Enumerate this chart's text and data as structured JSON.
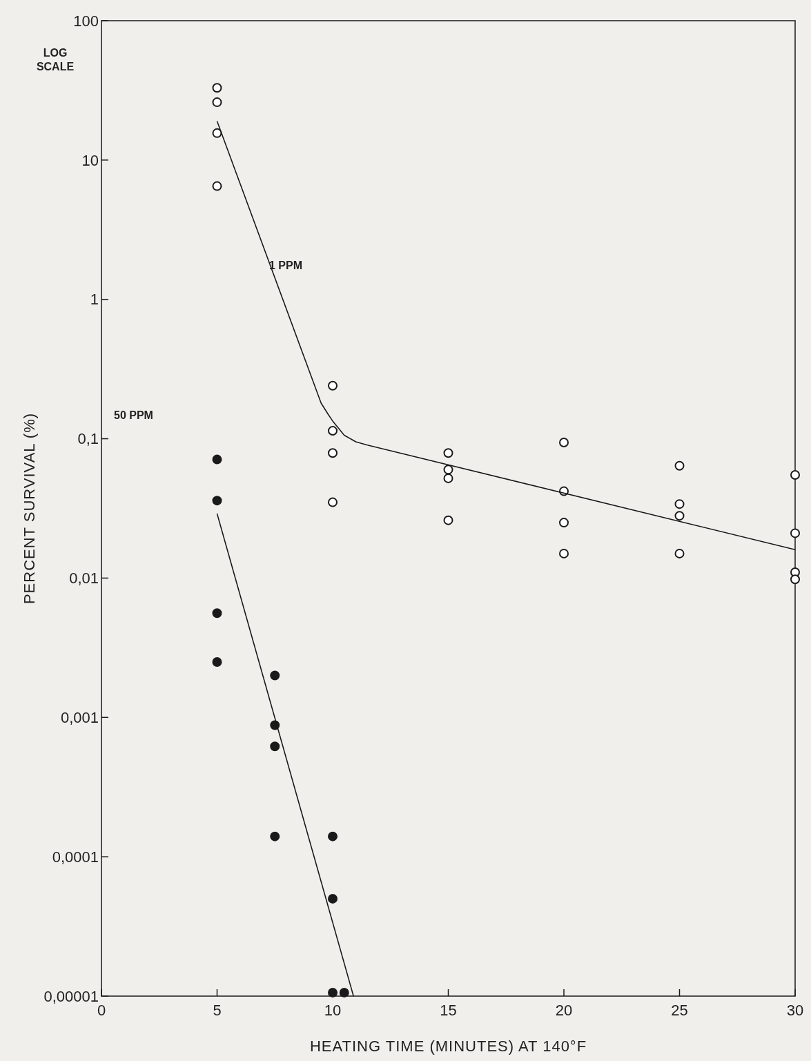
{
  "chart_data": {
    "type": "scatter",
    "xlabel": "HEATING TIME (MINUTES) AT 140°F",
    "ylabel": "PERCENT SURVIVAL (%)",
    "log": "y",
    "grid": false,
    "xlim": [
      0,
      30
    ],
    "ylim": [
      1e-05,
      100
    ],
    "xticks": [
      0,
      5,
      10,
      15,
      20,
      25,
      30
    ],
    "yticks": [
      {
        "value": 100,
        "label": "100"
      },
      {
        "value": 10,
        "label": "10"
      },
      {
        "value": 1,
        "label": "1"
      },
      {
        "value": 0.1,
        "label": "0,1"
      },
      {
        "value": 0.01,
        "label": "0,01"
      },
      {
        "value": 0.001,
        "label": "0,001"
      },
      {
        "value": 0.0001,
        "label": "0,0001"
      },
      {
        "value": 1e-05,
        "label": "0,00001"
      }
    ],
    "series": [
      {
        "marker": "circle",
        "color": "#ffffff",
        "x": [
          5,
          5,
          5,
          5,
          10,
          10,
          10,
          10,
          15,
          15,
          15,
          15,
          20,
          20,
          20,
          20,
          25,
          25,
          25,
          25,
          30,
          30,
          30,
          30
        ],
        "values": [
          33,
          26,
          15.6,
          6.5,
          0.24,
          0.114,
          0.079,
          0.035,
          0.079,
          0.06,
          0.052,
          0.026,
          0.094,
          0.042,
          0.025,
          0.015,
          0.064,
          0.034,
          0.028,
          0.015,
          0.055,
          0.021,
          0.011,
          0.0098
        ]
      },
      {
        "marker": "circle",
        "color": "#1a1a1a",
        "x": [
          5,
          5,
          5,
          5,
          7.5,
          7.5,
          7.5,
          7.5,
          10,
          10,
          10,
          10.5
        ],
        "values": [
          0.071,
          0.036,
          0.0056,
          0.0025,
          0.002,
          0.00088,
          0.00062,
          0.00014,
          0.00014,
          5e-05,
          1.06e-05,
          1.06e-05
        ]
      },
      {
        "type": "line",
        "color": "#1a1a1a",
        "x": [
          5,
          9.5,
          9.8,
          10,
          10.5,
          11,
          11.5,
          30
        ],
        "values": [
          19,
          0.18,
          0.15,
          0.134,
          0.106,
          0.095,
          0.09,
          0.016
        ]
      },
      {
        "type": "line",
        "color": "#1a1a1a",
        "x": [
          5,
          10.9
        ],
        "values": [
          0.029,
          1e-05
        ]
      }
    ],
    "annotations": [
      "LOG SCALE",
      "1 PPM",
      "50 PPM"
    ]
  }
}
